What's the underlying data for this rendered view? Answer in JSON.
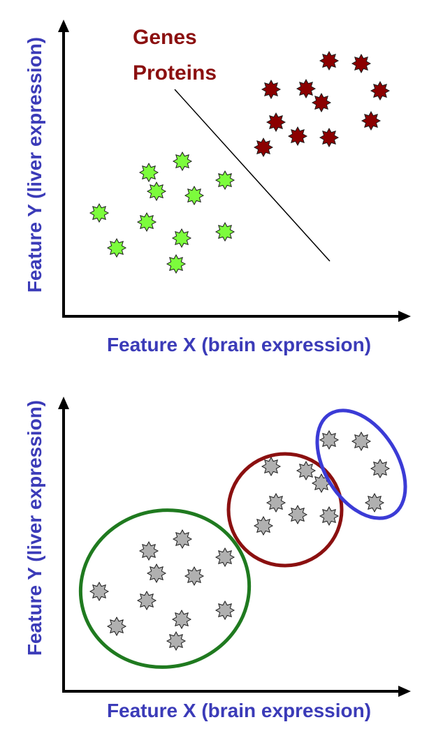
{
  "colors": {
    "axis_label": "#3b3bb8",
    "legend_text": "#8b1010",
    "green_star": "#7cfc3c",
    "red_star": "#8b0000",
    "gray_star": "#b0b0b0",
    "star_stroke": "#1a1a1a",
    "green_cluster": "#1f7a1f",
    "red_cluster": "#8b1010",
    "blue_cluster": "#3b3bd6"
  },
  "top_panel": {
    "legend": [
      "Genes",
      "Proteins"
    ],
    "xlabel": "Feature X (brain expression)",
    "ylabel": "Feature Y (liver expression)",
    "separator": "diagonal-line",
    "green_points": [
      [
        142,
        305
      ],
      [
        167,
        355
      ],
      [
        210,
        318
      ],
      [
        213,
        247
      ],
      [
        224,
        274
      ],
      [
        252,
        378
      ],
      [
        261,
        231
      ],
      [
        260,
        341
      ],
      [
        278,
        280
      ],
      [
        322,
        258
      ],
      [
        322,
        332
      ]
    ],
    "red_points": [
      [
        377,
        211
      ],
      [
        388,
        128
      ],
      [
        395,
        175
      ],
      [
        426,
        195
      ],
      [
        438,
        127
      ],
      [
        460,
        147
      ],
      [
        471,
        87
      ],
      [
        471,
        197
      ],
      [
        517,
        91
      ],
      [
        544,
        130
      ],
      [
        531,
        173
      ]
    ]
  },
  "bottom_panel": {
    "xlabel": "Feature X (brain expression)",
    "ylabel": "Feature Y (liver expression)",
    "gray_points": [
      [
        142,
        847
      ],
      [
        167,
        897
      ],
      [
        210,
        860
      ],
      [
        213,
        789
      ],
      [
        224,
        821
      ],
      [
        252,
        918
      ],
      [
        261,
        772
      ],
      [
        260,
        887
      ],
      [
        278,
        825
      ],
      [
        322,
        798
      ],
      [
        322,
        874
      ],
      [
        377,
        753
      ],
      [
        388,
        668
      ],
      [
        395,
        720
      ],
      [
        426,
        737
      ],
      [
        438,
        674
      ],
      [
        460,
        692
      ],
      [
        471,
        630
      ],
      [
        471,
        739
      ],
      [
        517,
        632
      ],
      [
        544,
        671
      ],
      [
        536,
        720
      ]
    ],
    "clusters": [
      {
        "name": "green-cluster",
        "color_key": "green_cluster"
      },
      {
        "name": "red-cluster",
        "color_key": "red_cluster"
      },
      {
        "name": "blue-cluster",
        "color_key": "blue_cluster"
      }
    ]
  }
}
